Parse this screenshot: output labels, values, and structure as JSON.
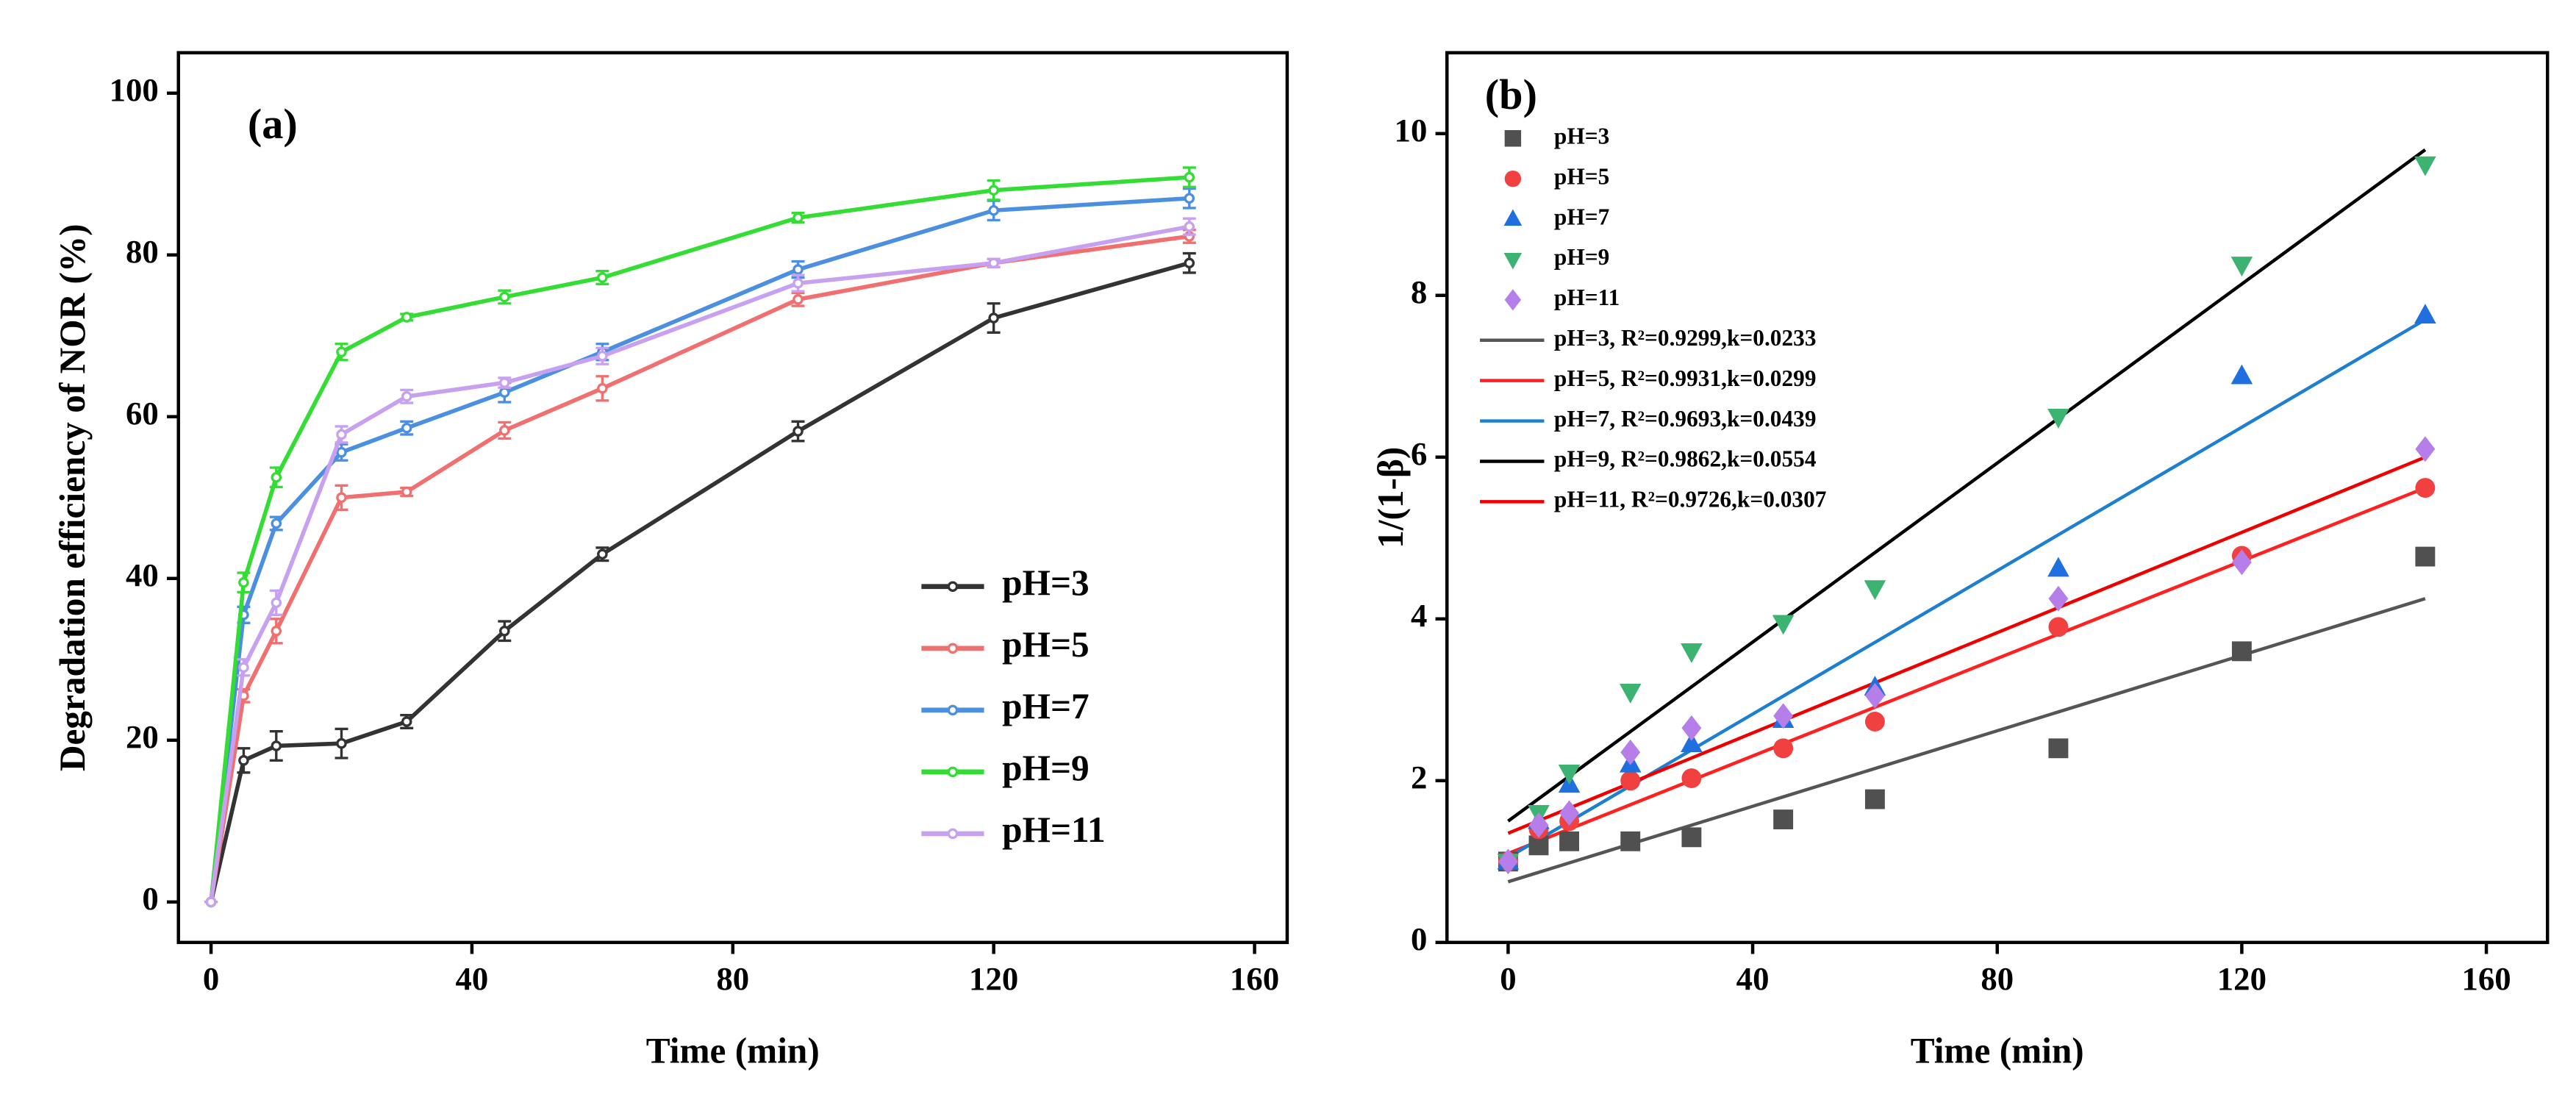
{
  "chart_data": [
    {
      "type": "line",
      "label": "(a)",
      "x_label": "Time (min)",
      "y_label": "Degradation efficiency of NOR (%)",
      "x": [
        0,
        5,
        10,
        20,
        30,
        45,
        60,
        90,
        120,
        150
      ],
      "series": [
        {
          "name": "pH=3",
          "color": "#333333",
          "values": [
            0,
            17.5,
            19.3,
            19.6,
            22.3,
            33.5,
            43,
            58.2,
            72.2,
            79
          ],
          "errors": [
            0,
            1.5,
            1.8,
            1.8,
            0.8,
            1.2,
            0.8,
            1.2,
            1.8,
            1.2
          ]
        },
        {
          "name": "pH=5",
          "color": "#f07070",
          "values": [
            0,
            25.5,
            33.5,
            50,
            50.7,
            58.3,
            63.5,
            74.5,
            79,
            82.3
          ],
          "errors": [
            0,
            0.8,
            1.5,
            1.5,
            0.5,
            1.0,
            1.5,
            0.8,
            0.5,
            0.8
          ]
        },
        {
          "name": "pH=7",
          "color": "#4a8fe0",
          "values": [
            0,
            35.5,
            46.8,
            55.6,
            58.6,
            63,
            68,
            78.2,
            85.5,
            87
          ],
          "errors": [
            0,
            1.0,
            0.8,
            1.0,
            0.8,
            1.2,
            1.0,
            1.0,
            1.2,
            1.2
          ]
        },
        {
          "name": "pH=9",
          "color": "#33dd33",
          "values": [
            0,
            39.5,
            52.5,
            68,
            72.3,
            74.8,
            77.2,
            84.6,
            88,
            89.6
          ],
          "errors": [
            0,
            1.2,
            1.2,
            1.0,
            0.4,
            0.8,
            0.8,
            0.6,
            1.2,
            1.2
          ]
        },
        {
          "name": "pH=11",
          "color": "#c8a0f0",
          "values": [
            0,
            29,
            37,
            57.8,
            62.5,
            64.2,
            67.5,
            76.5,
            79,
            83.5
          ],
          "errors": [
            0,
            1.0,
            1.5,
            1.0,
            0.8,
            0.6,
            1.0,
            1.0,
            0.5,
            1.0
          ]
        }
      ],
      "xlim": [
        -5,
        165
      ],
      "ylim": [
        -5,
        105
      ],
      "xticks": [
        0,
        40,
        80,
        120,
        160
      ],
      "yticks": [
        0,
        20,
        40,
        60,
        80,
        100
      ],
      "legend": "lower right"
    },
    {
      "type": "scatter",
      "label": "(b)",
      "x_label": "Time (min)",
      "y_label": "1/(1-β)",
      "x": [
        0,
        5,
        10,
        20,
        30,
        45,
        60,
        90,
        120,
        150
      ],
      "series": [
        {
          "name": "pH=3",
          "color": "#505050",
          "marker": "square",
          "values": [
            1.0,
            1.2,
            1.25,
            1.25,
            1.3,
            1.52,
            1.77,
            2.4,
            3.6,
            4.77
          ]
        },
        {
          "name": "pH=5",
          "color": "#f04040",
          "marker": "circle",
          "values": [
            1.0,
            1.4,
            1.5,
            2.0,
            2.03,
            2.4,
            2.73,
            3.9,
            4.78,
            5.62
          ]
        },
        {
          "name": "pH=7",
          "color": "#1f6fdf",
          "marker": "triangle-up",
          "values": [
            1.0,
            1.5,
            1.95,
            2.2,
            2.45,
            2.75,
            3.15,
            4.62,
            7.0,
            7.75
          ]
        },
        {
          "name": "pH=9",
          "color": "#3cb371",
          "marker": "triangle-down",
          "values": [
            1.0,
            1.6,
            2.1,
            3.1,
            3.6,
            3.95,
            4.38,
            6.5,
            8.38,
            9.62
          ]
        },
        {
          "name": "pH=11",
          "color": "#b57ee8",
          "marker": "diamond",
          "values": [
            1.0,
            1.45,
            1.6,
            2.35,
            2.65,
            2.8,
            3.05,
            4.25,
            4.7,
            6.1
          ]
        }
      ],
      "fits": [
        {
          "name": "pH=3, R²=0.9299,k=0.0233",
          "color": "#555555",
          "x": [
            0,
            150
          ],
          "values": [
            0.75,
            4.25
          ]
        },
        {
          "name": "pH=5, R²=0.9931,k=0.0299",
          "color": "#ff2020",
          "x": [
            0,
            150
          ],
          "values": [
            1.1,
            5.62
          ]
        },
        {
          "name": "pH=7, R²=0.9693,k=0.0439",
          "color": "#1e7fd0",
          "x": [
            0,
            150
          ],
          "values": [
            1.05,
            7.7
          ]
        },
        {
          "name": "pH=9, R²=0.9862,k=0.0554",
          "color": "#000000",
          "x": [
            0,
            150
          ],
          "values": [
            1.5,
            9.8
          ]
        },
        {
          "name": "pH=11, R²=0.9726,k=0.0307",
          "color": "#ee0000",
          "x": [
            0,
            150
          ],
          "values": [
            1.35,
            6.0
          ]
        }
      ],
      "xlim": [
        -10,
        170
      ],
      "ylim": [
        0,
        11
      ],
      "xticks": [
        0,
        40,
        80,
        120,
        160
      ],
      "yticks": [
        0,
        2,
        4,
        6,
        8,
        10
      ],
      "legend": "upper left"
    }
  ]
}
